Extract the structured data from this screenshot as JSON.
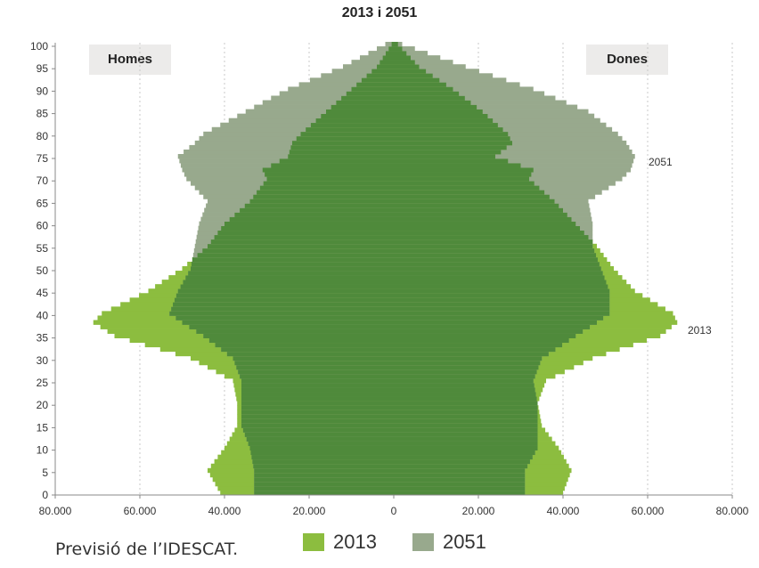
{
  "chart_data": {
    "type": "bar",
    "orientation": "horizontal-pyramid",
    "title": "2013 i 2051",
    "left_label": "Homes",
    "right_label": "Dones",
    "x_ticks": [
      "80.000",
      "60.000",
      "40.000",
      "20.000",
      "0",
      "20.000",
      "40.000",
      "60.000",
      "80.000"
    ],
    "y_ticks": [
      "0",
      "5",
      "10",
      "15",
      "20",
      "25",
      "30",
      "35",
      "40",
      "45",
      "50",
      "55",
      "60",
      "65",
      "70",
      "75",
      "80",
      "85",
      "90",
      "95",
      "100"
    ],
    "xlim": [
      -80000,
      80000
    ],
    "ylim": [
      0,
      100
    ],
    "grid": "vertical-dotted",
    "legend_position": "bottom",
    "colors": {
      "2013": "#8cbd3f",
      "2051": "#98a98d",
      "overlap": "#4f8a3b"
    },
    "annotations": [
      "2051",
      "2013"
    ],
    "ages": [
      0,
      5,
      10,
      15,
      20,
      25,
      30,
      35,
      38,
      40,
      45,
      50,
      55,
      60,
      65,
      70,
      72,
      75,
      78,
      80,
      85,
      90,
      95,
      100
    ],
    "series": [
      {
        "name": "2013",
        "men": [
          41000,
          44000,
          40000,
          37000,
          37000,
          38000,
          48000,
          66000,
          71000,
          69000,
          58000,
          50000,
          44000,
          40000,
          34000,
          30000,
          31000,
          25000,
          24000,
          22000,
          16000,
          10000,
          4000,
          500
        ],
        "women": [
          40000,
          42000,
          39000,
          35000,
          34000,
          36000,
          47000,
          63000,
          67000,
          66000,
          57000,
          52000,
          48000,
          43000,
          38000,
          32000,
          33000,
          24000,
          28000,
          27000,
          21000,
          14000,
          6000,
          1000
        ]
      },
      {
        "name": "2051",
        "men": [
          33000,
          33000,
          34000,
          36000,
          36000,
          36000,
          38000,
          45000,
          50000,
          53000,
          51000,
          48000,
          47000,
          46000,
          44000,
          49000,
          50000,
          51000,
          47000,
          45000,
          35000,
          25000,
          12000,
          2000
        ],
        "women": [
          31000,
          31000,
          34000,
          34000,
          34000,
          33000,
          35000,
          43000,
          48000,
          51000,
          51000,
          49000,
          47000,
          47000,
          46000,
          54000,
          56000,
          57000,
          55000,
          53000,
          46000,
          33000,
          17000,
          2000
        ]
      }
    ]
  },
  "footer": {
    "source": "Previsió de l’IDESCAT."
  }
}
